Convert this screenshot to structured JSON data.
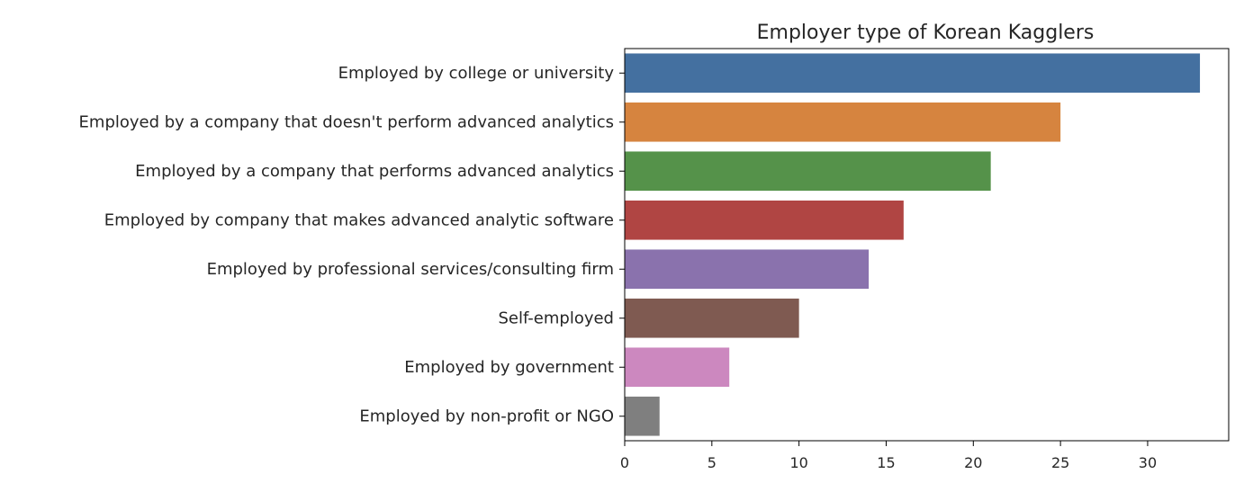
{
  "chart_data": {
    "type": "bar",
    "orientation": "horizontal",
    "title": "Employer type of Korean Kagglers",
    "xlabel": "",
    "ylabel": "",
    "categories": [
      "Employed by college or university",
      "Employed by a company that doesn't perform advanced analytics",
      "Employed by a company that performs advanced analytics",
      "Employed by company that makes advanced analytic software",
      "Employed by professional services/consulting firm",
      "Self-employed",
      "Employed by government",
      "Employed by non-profit or NGO"
    ],
    "values": [
      33,
      25,
      21,
      16,
      14,
      10,
      6,
      2
    ],
    "colors": [
      "#4470a0",
      "#d6843f",
      "#55924a",
      "#b04543",
      "#8a72ad",
      "#7f5a51",
      "#cc88bf",
      "#7f7f7f"
    ],
    "xlim": [
      0,
      34.65
    ],
    "xticks": [
      0,
      5,
      10,
      15,
      20,
      25,
      30
    ],
    "grid": false,
    "legend": "none"
  }
}
